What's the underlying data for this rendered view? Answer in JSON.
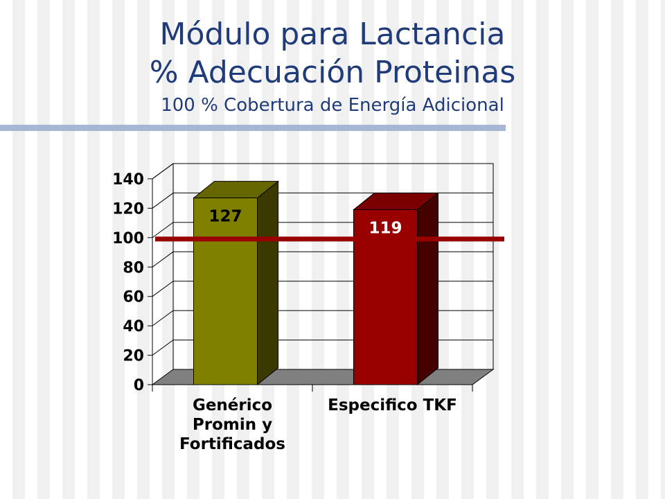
{
  "title": "Módulo para Lactancia",
  "subtitle": "% Adecuación Proteinas",
  "subtitle2": "100 % Cobertura de  Energía Adicional",
  "chart_data": {
    "type": "bar",
    "categories": [
      "Genérico Promin y Fortificados",
      "Especifico TKF"
    ],
    "category_lines": [
      [
        "Genérico",
        "Promin y",
        "Fortificados"
      ],
      [
        "Especifico TKF"
      ]
    ],
    "values": [
      127,
      119
    ],
    "data_labels": [
      "127",
      "119"
    ],
    "bar_colors": [
      "#808000",
      "#990000"
    ],
    "label_colors": [
      "#000000",
      "#ffffff"
    ],
    "reference_line": {
      "value": 100,
      "color": "#990000"
    },
    "ylim": [
      0,
      140
    ],
    "yticks": [
      "0",
      "20",
      "40",
      "60",
      "80",
      "100",
      "120",
      "140"
    ],
    "grid": true,
    "style": "3d",
    "xlabel": "",
    "ylabel": ""
  }
}
